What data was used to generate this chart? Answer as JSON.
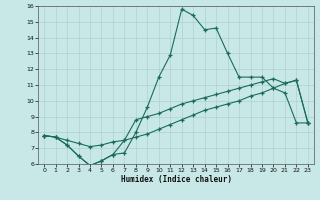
{
  "xlabel": "Humidex (Indice chaleur)",
  "background_color": "#c8e8e8",
  "grid_color": "#b0d0d0",
  "line_color": "#1a6b5a",
  "xlim": [
    -0.5,
    23.5
  ],
  "ylim": [
    6,
    16
  ],
  "xticks": [
    0,
    1,
    2,
    3,
    4,
    5,
    6,
    7,
    8,
    9,
    10,
    11,
    12,
    13,
    14,
    15,
    16,
    17,
    18,
    19,
    20,
    21,
    22,
    23
  ],
  "yticks": [
    6,
    7,
    8,
    9,
    10,
    11,
    12,
    13,
    14,
    15,
    16
  ],
  "line1_x": [
    0,
    1,
    2,
    3,
    4,
    5,
    6,
    7,
    8,
    9,
    10,
    11,
    12,
    13,
    14,
    15,
    16,
    17,
    18,
    19,
    20,
    21,
    22,
    23
  ],
  "line1_y": [
    7.8,
    7.7,
    7.2,
    6.5,
    5.9,
    6.2,
    6.6,
    6.7,
    8.0,
    9.6,
    11.5,
    12.9,
    15.8,
    15.4,
    14.5,
    14.6,
    13.0,
    11.5,
    11.5,
    11.5,
    10.8,
    10.5,
    8.6,
    8.6
  ],
  "line2_x": [
    0,
    1,
    2,
    3,
    4,
    5,
    6,
    7,
    8,
    9,
    10,
    11,
    12,
    13,
    14,
    15,
    16,
    17,
    18,
    19,
    20,
    21,
    22,
    23
  ],
  "line2_y": [
    7.8,
    7.7,
    7.5,
    7.3,
    7.1,
    7.2,
    7.4,
    7.5,
    7.7,
    7.9,
    8.2,
    8.5,
    8.8,
    9.1,
    9.4,
    9.6,
    9.8,
    10.0,
    10.3,
    10.5,
    10.8,
    11.1,
    11.3,
    8.6
  ],
  "line3_x": [
    0,
    1,
    2,
    3,
    4,
    5,
    6,
    7,
    8,
    9,
    10,
    11,
    12,
    13,
    14,
    15,
    16,
    17,
    18,
    19,
    20,
    21,
    22,
    23
  ],
  "line3_y": [
    7.8,
    7.7,
    7.2,
    6.5,
    5.9,
    6.2,
    6.6,
    7.5,
    8.8,
    9.0,
    9.2,
    9.5,
    9.8,
    10.0,
    10.2,
    10.4,
    10.6,
    10.8,
    11.0,
    11.2,
    11.4,
    11.1,
    11.3,
    8.6
  ]
}
